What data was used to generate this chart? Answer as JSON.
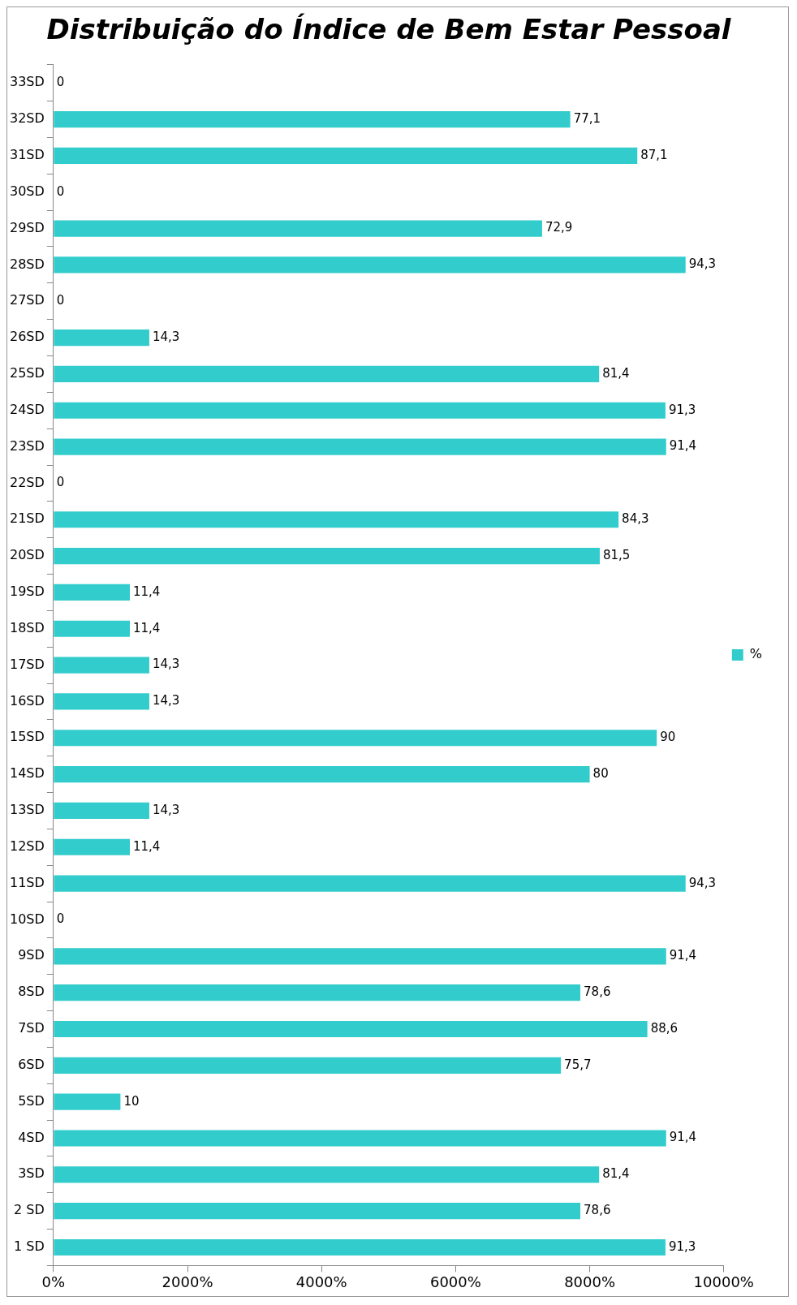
{
  "chart_data": {
    "type": "bar",
    "orientation": "horizontal",
    "title": "Distribuição do Índice de Bem Estar Pessoal",
    "categories": [
      "33SD",
      "32SD",
      "31SD",
      "30SD",
      "29SD",
      "28SD",
      "27SD",
      "26SD",
      "25SD",
      "24SD",
      "23SD",
      "22SD",
      "21SD",
      "20SD",
      "19SD",
      "18SD",
      "17SD",
      "16SD",
      "15SD",
      "14SD",
      "13SD",
      "12SD",
      "11SD",
      "10SD",
      "9SD",
      "8SD",
      "7SD",
      "6SD",
      "5SD",
      "4SD",
      "3SD",
      "2 SD",
      "1 SD"
    ],
    "series": [
      {
        "name": "%",
        "color": "#33cccc",
        "values": [
          0,
          77.1,
          87.1,
          0,
          72.9,
          94.3,
          0,
          14.3,
          81.4,
          91.3,
          91.4,
          0,
          84.3,
          81.5,
          11.4,
          11.4,
          14.3,
          14.3,
          90,
          80,
          14.3,
          11.4,
          94.3,
          0,
          91.4,
          78.6,
          88.6,
          75.7,
          10,
          91.4,
          81.4,
          78.6,
          91.3
        ],
        "value_labels": [
          "0",
          "77,1",
          "87,1",
          "0",
          "72,9",
          "94,3",
          "0",
          "14,3",
          "81,4",
          "91,3",
          "91,4",
          "0",
          "84,3",
          "81,5",
          "11,4",
          "11,4",
          "14,3",
          "14,3",
          "90",
          "80",
          "14,3",
          "11,4",
          "94,3",
          "0",
          "91,4",
          "78,6",
          "88,6",
          "75,7",
          "10",
          "91,4",
          "81,4",
          "78,6",
          "91,3"
        ]
      }
    ],
    "xlim": [
      0,
      100
    ],
    "xticks": [
      {
        "value": 0,
        "label": "0%"
      },
      {
        "value": 20,
        "label": "2000%"
      },
      {
        "value": 40,
        "label": "4000%"
      },
      {
        "value": 60,
        "label": "6000%"
      },
      {
        "value": 80,
        "label": "8000%"
      },
      {
        "value": 100,
        "label": "10000%"
      }
    ],
    "grid": false,
    "legend": "right"
  }
}
